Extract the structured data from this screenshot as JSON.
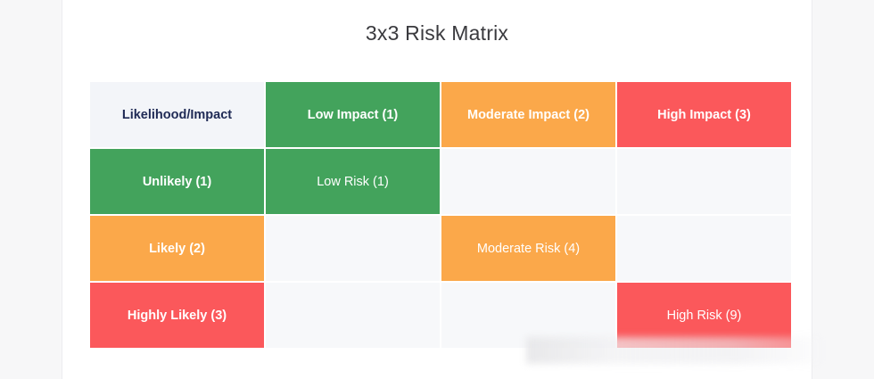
{
  "title": "3x3 Risk Matrix",
  "colors": {
    "low": "#43a35c",
    "moderate": "#fba84a",
    "high": "#fb585b",
    "corner_bg": "#f3f5f9",
    "empty_bg": "#f7f8fa"
  },
  "matrix": {
    "corner_label": "Likelihood/Impact",
    "impact_headers": [
      "Low Impact (1)",
      "Moderate Impact (2)",
      "High Impact (3)"
    ],
    "rows": [
      {
        "likelihood": "Unlikely (1)",
        "cells": [
          "Low Risk (1)",
          "",
          ""
        ]
      },
      {
        "likelihood": "Likely (2)",
        "cells": [
          "",
          "Moderate Risk (4)",
          ""
        ]
      },
      {
        "likelihood": "Highly Likely (3)",
        "cells": [
          "",
          "",
          "High Risk (9)"
        ]
      }
    ]
  }
}
